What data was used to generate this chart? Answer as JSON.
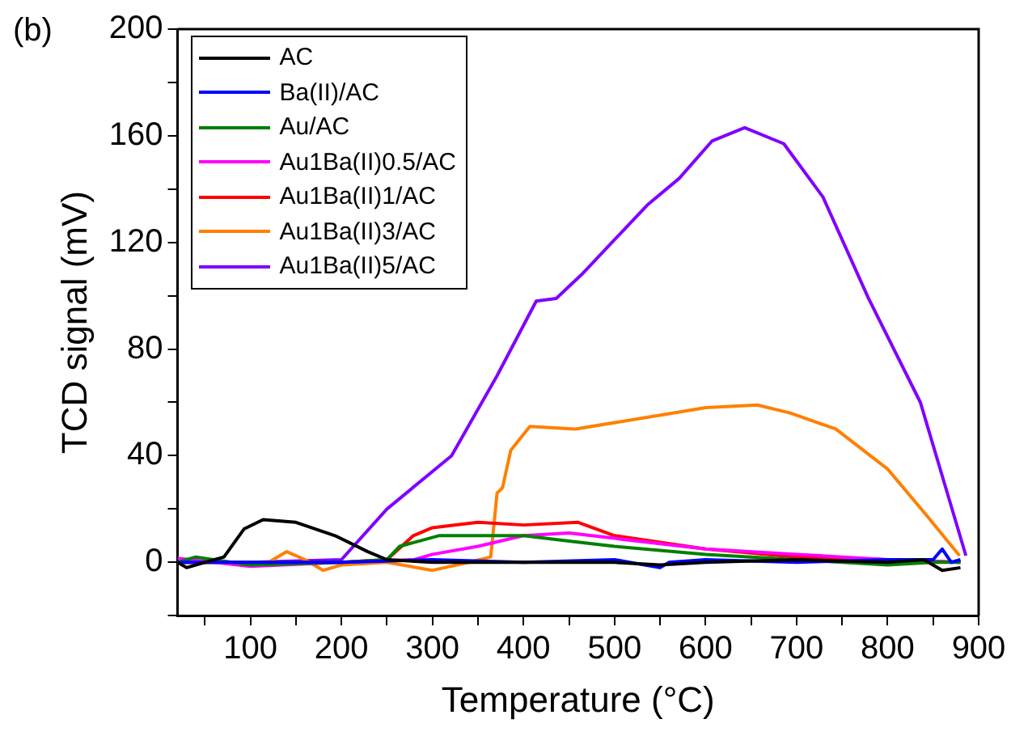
{
  "chart_data": {
    "type": "line",
    "title": "(b)",
    "xlabel": "Temperature (°C)",
    "ylabel": "TCD signal (mV)",
    "xlim": [
      20,
      900
    ],
    "ylim": [
      -20,
      200
    ],
    "xticks": [
      {
        "value": 50,
        "label": null
      },
      100,
      {
        "value": 150,
        "label": null
      },
      200,
      {
        "value": 250,
        "label": null
      },
      300,
      {
        "value": 350,
        "label": null
      },
      400,
      {
        "value": 450,
        "label": null
      },
      500,
      {
        "value": 550,
        "label": null
      },
      600,
      {
        "value": 650,
        "label": null
      },
      700,
      {
        "value": 750,
        "label": null
      },
      800,
      {
        "value": 850,
        "label": null
      },
      900
    ],
    "yticks": [
      {
        "value": -20,
        "label": null
      },
      0,
      {
        "value": 20,
        "label": null
      },
      40,
      {
        "value": 60,
        "label": null
      },
      80,
      {
        "value": 100,
        "label": null
      },
      120,
      {
        "value": 140,
        "label": null
      },
      160,
      {
        "value": 180,
        "label": null
      },
      200
    ],
    "grid": false,
    "legend": "top left",
    "marker": "none",
    "line_style": "solid",
    "series": [
      {
        "name": "AC",
        "color": "#000000",
        "x": [
          20,
          30,
          50,
          71,
          93,
          114,
          150,
          193,
          229,
          250,
          300,
          400,
          500,
          550,
          600,
          700,
          800,
          840,
          860,
          880
        ],
        "values": [
          0,
          -2,
          0,
          2,
          12.5,
          16,
          15,
          10,
          4,
          1,
          0,
          0,
          0,
          -1,
          0,
          1,
          0,
          1,
          -3,
          -2
        ]
      },
      {
        "name": "Ba(II)/AC",
        "color": "#0000ff",
        "x": [
          20,
          100,
          200,
          300,
          400,
          500,
          550,
          560,
          600,
          700,
          800,
          850,
          860,
          870,
          880
        ],
        "values": [
          0,
          0,
          0,
          1,
          0,
          1,
          -2,
          0,
          1,
          0,
          1,
          1,
          5,
          0,
          1
        ]
      },
      {
        "name": "Au/AC",
        "color": "#008000",
        "x": [
          20,
          40,
          100,
          200,
          250,
          264,
          307,
          400,
          450,
          500,
          600,
          700,
          800,
          850,
          880
        ],
        "values": [
          0,
          2,
          -1,
          0,
          1,
          6,
          10,
          10,
          8,
          6,
          3,
          1,
          -1,
          0,
          0
        ]
      },
      {
        "name": "Au1Ba(II)0.5/AC",
        "color": "#ff00ff",
        "x": [
          20,
          100,
          200,
          280,
          300,
          350,
          400,
          450,
          500,
          600,
          700,
          800,
          880
        ],
        "values": [
          1.5,
          -1.5,
          0,
          1,
          3,
          6,
          10,
          11,
          9,
          5,
          3,
          1,
          0
        ]
      },
      {
        "name": "Au1Ba(II)1/AC",
        "color": "#ff0000",
        "x": [
          20,
          100,
          200,
          250,
          279,
          300,
          350,
          400,
          460,
          500,
          600,
          700,
          800,
          880
        ],
        "values": [
          0,
          0,
          0,
          1,
          10,
          13,
          15,
          14,
          15,
          10,
          5,
          2,
          1,
          0
        ]
      },
      {
        "name": "Au1Ba(II)3/AC",
        "color": "#ff8000",
        "x": [
          20,
          120,
          140,
          160,
          180,
          200,
          250,
          300,
          340,
          364,
          371,
          377,
          386,
          407,
          457,
          529,
          600,
          657,
          693,
          743,
          800,
          843,
          879
        ],
        "values": [
          0,
          0,
          4,
          1,
          -3,
          -1,
          0,
          -3,
          0,
          2,
          26,
          28,
          42,
          51,
          50,
          54,
          58,
          59,
          56,
          50,
          35,
          17.5,
          2.5
        ]
      },
      {
        "name": "Au1Ba(II)5/AC",
        "color": "#8000ff",
        "x": [
          20,
          100,
          200,
          250,
          321,
          371,
          414,
          436,
          464,
          536,
          571,
          607,
          643,
          686,
          729,
          779,
          836,
          886
        ],
        "values": [
          0,
          0,
          1,
          20,
          40,
          70,
          98,
          99,
          108,
          134,
          144,
          158,
          163,
          157,
          137,
          99,
          60,
          2.5
        ]
      }
    ]
  }
}
